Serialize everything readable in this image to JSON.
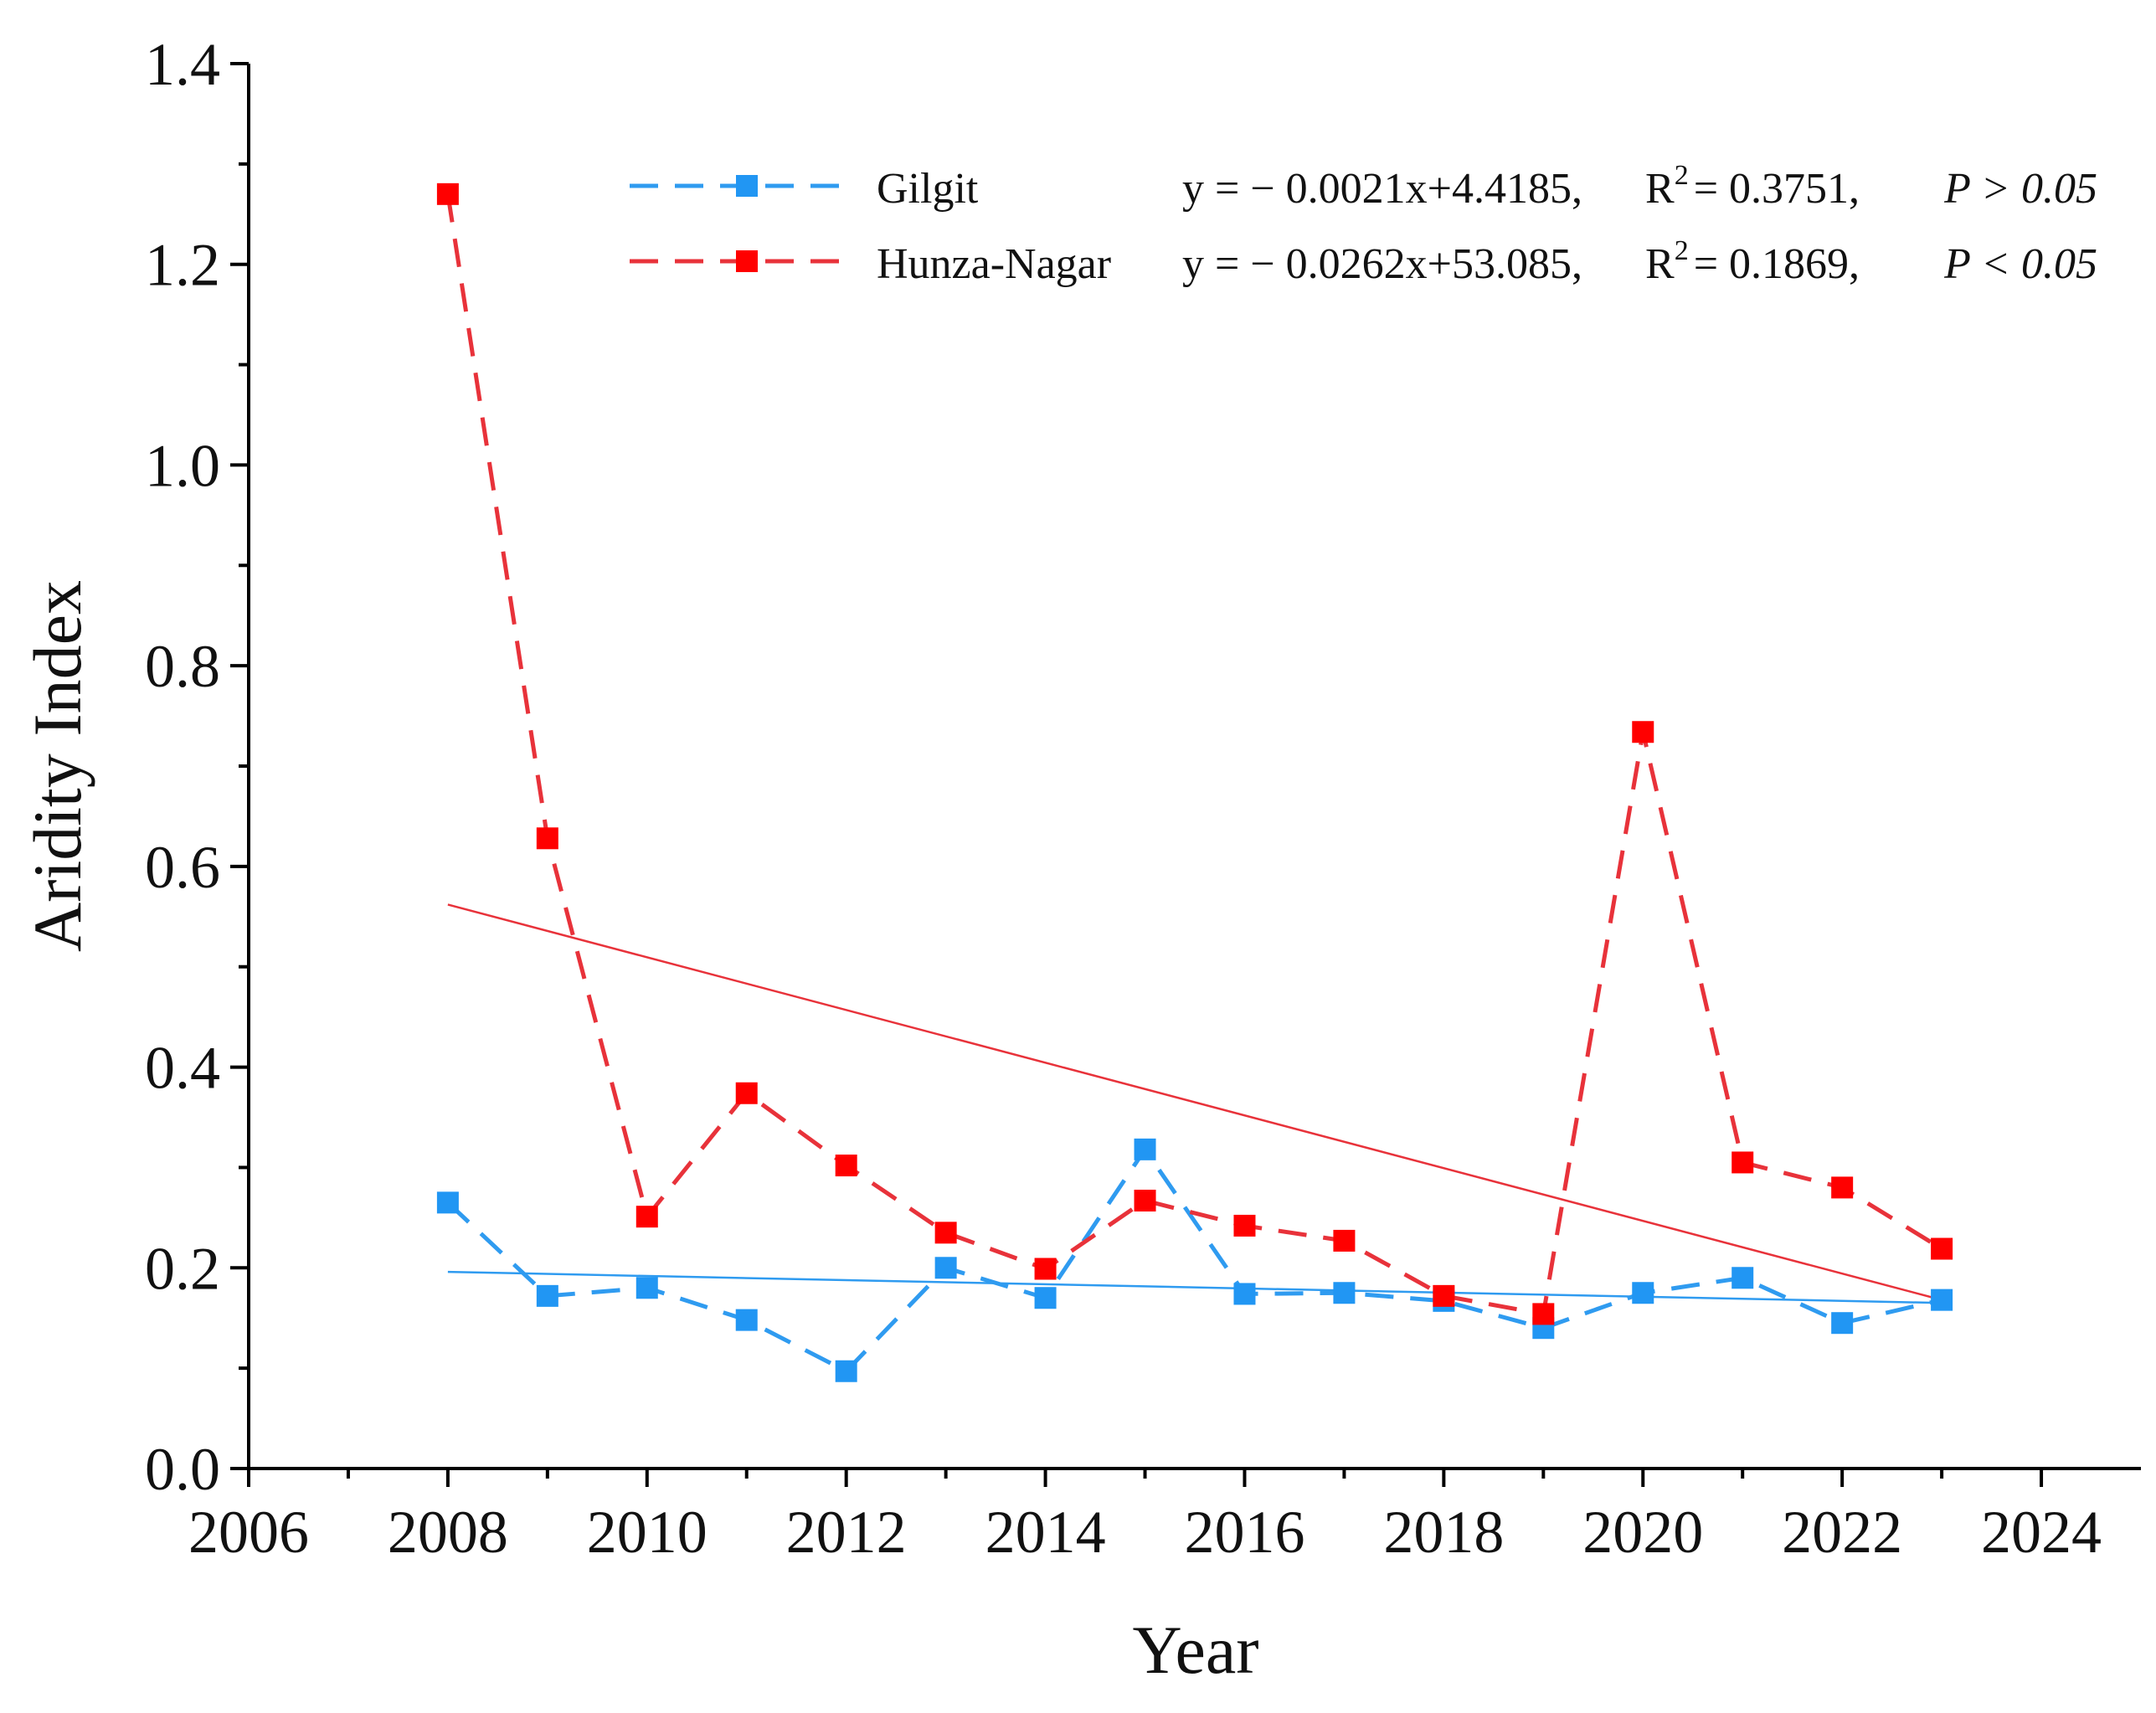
{
  "chart_data": {
    "type": "line",
    "xlabel": "Year",
    "ylabel": "Aridity Index",
    "x": [
      2008,
      2009,
      2010,
      2011,
      2012,
      2013,
      2014,
      2015,
      2016,
      2017,
      2018,
      2019,
      2020,
      2021,
      2022,
      2023
    ],
    "series": [
      {
        "name": "Gilgit",
        "color": "#2f9bf0",
        "marker_color": "#2196f3",
        "values": [
          0.265,
          0.172,
          0.18,
          0.148,
          0.097,
          0.2,
          0.17,
          0.318,
          0.174,
          0.175,
          0.167,
          0.14,
          0.175,
          0.19,
          0.145,
          0.168
        ],
        "equation": "y = − 0.0021x+4.4185,",
        "r2_label": "R",
        "r2_sup": "2",
        "r2_value": "= 0.3751,",
        "p_text": "P > 0.05",
        "trend": {
          "x": [
            2008,
            2023
          ],
          "values": [
            0.196,
            0.165
          ]
        }
      },
      {
        "name": "Hunza-Nagar",
        "color": "#e8323a",
        "marker_color": "#ff0000",
        "values": [
          1.27,
          0.628,
          0.251,
          0.374,
          0.302,
          0.235,
          0.199,
          0.267,
          0.242,
          0.227,
          0.172,
          0.154,
          0.734,
          0.305,
          0.28,
          0.219
        ],
        "equation": "y = − 0.0262x+53.085,",
        "r2_label": "R",
        "r2_sup": "2",
        "r2_value": "= 0.1869,",
        "p_text": "P < 0.05",
        "trend": {
          "x": [
            2008,
            2023
          ],
          "values": [
            0.562,
            0.168
          ]
        }
      }
    ],
    "xlim": [
      2006,
      2025
    ],
    "xticks": [
      2006,
      2008,
      2010,
      2012,
      2014,
      2016,
      2018,
      2020,
      2022,
      2024
    ],
    "ylim": [
      0,
      1.4
    ],
    "yticks": [
      {
        "value": 0,
        "label": "0.0"
      },
      0.2,
      0.4,
      0.6,
      0.8,
      {
        "value": 1,
        "label": "1.0"
      },
      1.2,
      1.4
    ],
    "grid": false
  }
}
